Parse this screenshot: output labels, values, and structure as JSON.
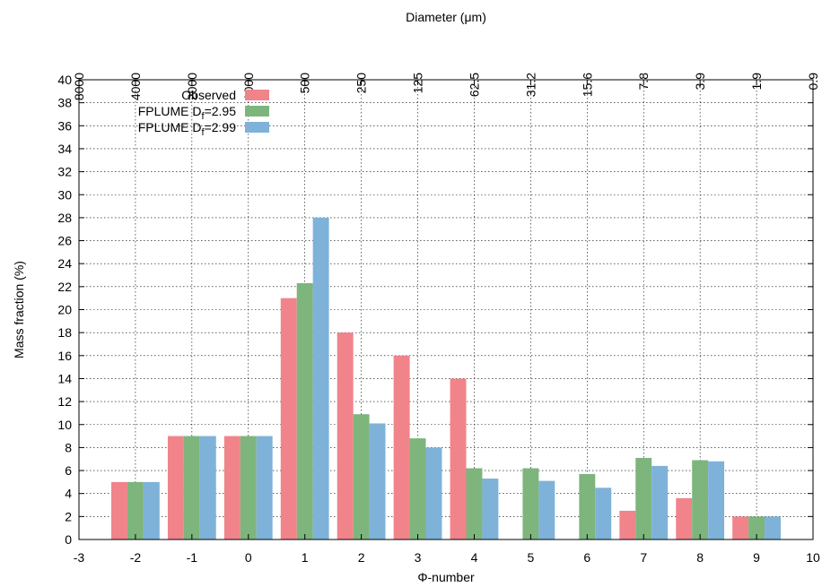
{
  "chart_data": {
    "type": "bar",
    "xlabel": "Φ-number",
    "ylabel": "Mass fraction (%)",
    "x2label": "Diameter (μm)",
    "xlim": [
      -3,
      10
    ],
    "ylim": [
      0,
      40
    ],
    "grid": true,
    "legend_position": "top-left",
    "x_ticks": [
      "-3",
      "-2",
      "-1",
      "0",
      "1",
      "2",
      "3",
      "4",
      "5",
      "6",
      "7",
      "8",
      "9",
      "10"
    ],
    "y_ticks": [
      "0",
      "2",
      "4",
      "6",
      "8",
      "10",
      "12",
      "14",
      "16",
      "18",
      "20",
      "22",
      "24",
      "26",
      "28",
      "30",
      "32",
      "34",
      "36",
      "38",
      "40"
    ],
    "x2_ticks": [
      "8000",
      "4000",
      "2000",
      "1000",
      "500",
      "250",
      "125",
      "62.5",
      "31.2",
      "15.6",
      "7.8",
      "3.9",
      "1.9",
      "0.9"
    ],
    "categories": [
      -2,
      -1,
      0,
      1,
      2,
      3,
      4,
      5,
      6,
      7,
      8,
      9
    ],
    "series": [
      {
        "name": "Observed",
        "legend_sub": "",
        "legend_tail": "",
        "color": "#f0848a",
        "values": [
          5,
          9,
          9,
          21,
          18,
          16,
          14,
          0,
          0,
          2.5,
          3.6,
          2
        ]
      },
      {
        "name": "FPLUME D",
        "legend_sub": "f",
        "legend_tail": "=2.95",
        "color": "#7db57d",
        "values": [
          5,
          9,
          9,
          22.3,
          10.9,
          8.8,
          6.2,
          6.2,
          5.7,
          7.1,
          6.9,
          2
        ]
      },
      {
        "name": "FPLUME D",
        "legend_sub": "f",
        "legend_tail": "=2.99",
        "color": "#7eb2d9",
        "values": [
          5,
          9,
          9,
          28,
          10.1,
          8,
          5.3,
          5.1,
          4.5,
          6.4,
          6.8,
          2
        ]
      }
    ]
  }
}
